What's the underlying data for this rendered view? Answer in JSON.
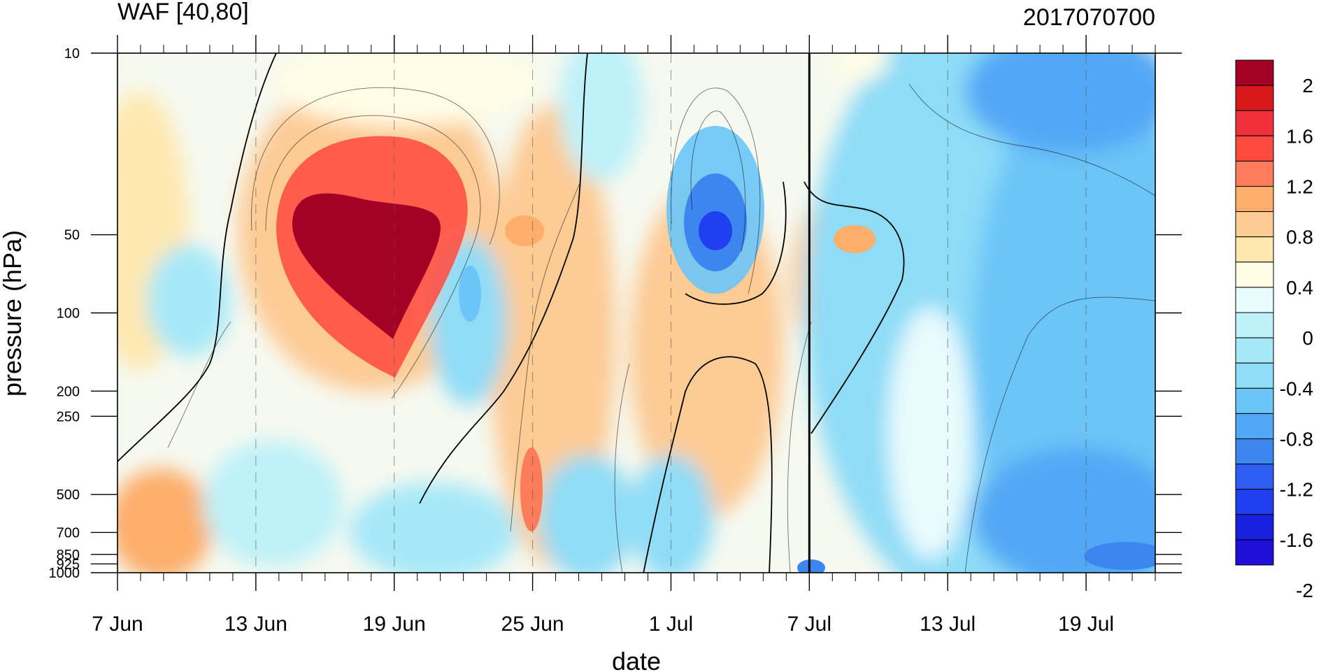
{
  "chart_data": {
    "type": "heatmap",
    "title_left": "WAF [40,80]",
    "title_right": "2017070700",
    "xlabel": "date",
    "ylabel": "pressure (hPa)",
    "x_ticks": [
      "7 Jun",
      "13 Jun",
      "19 Jun",
      "25 Jun",
      "1 Jul",
      "7 Jul",
      "13 Jul",
      "19 Jul"
    ],
    "x_range": [
      "7 Jun",
      "22 Jul"
    ],
    "y_ticks": [
      "10",
      "50",
      "100",
      "200",
      "250",
      "500",
      "700",
      "850",
      "925",
      "1000"
    ],
    "y_scale": "log",
    "y_range": [
      1000,
      10
    ],
    "vertical_marker": "7 Jul",
    "colorbar_labels": [
      "2",
      "1.6",
      "1.2",
      "0.8",
      "0.4",
      "0",
      "-0.4",
      "-0.8",
      "-1.2",
      "-1.6",
      "-2"
    ],
    "colorbar_colors": [
      "#A50026",
      "#D7191C",
      "#F0303A",
      "#FF4A40",
      "#FF7C5A",
      "#FDAE6B",
      "#FDCB94",
      "#FEE8B0",
      "#FFFDE6",
      "#E9FBFD",
      "#BEF1F8",
      "#A6E8F8",
      "#8FDCF7",
      "#6CC5F7",
      "#52A8F5",
      "#3C86F0",
      "#2C5CF0",
      "#2040F0",
      "#1A20E0",
      "#1F0FD8"
    ],
    "features": [
      {
        "feature": "positive maximum",
        "date": "17 Jun",
        "pressure_hPa": 60,
        "value": ">2"
      },
      {
        "feature": "positive local max",
        "date": "25 Jun",
        "pressure_hPa": 500,
        "value": 1.0
      },
      {
        "feature": "negative minimum",
        "date": "3 Jul",
        "pressure_hPa": 50,
        "value": -1.6
      },
      {
        "feature": "negative region",
        "date": "19 Jul",
        "pressure_hPa": 700,
        "value": -1.2
      }
    ]
  }
}
